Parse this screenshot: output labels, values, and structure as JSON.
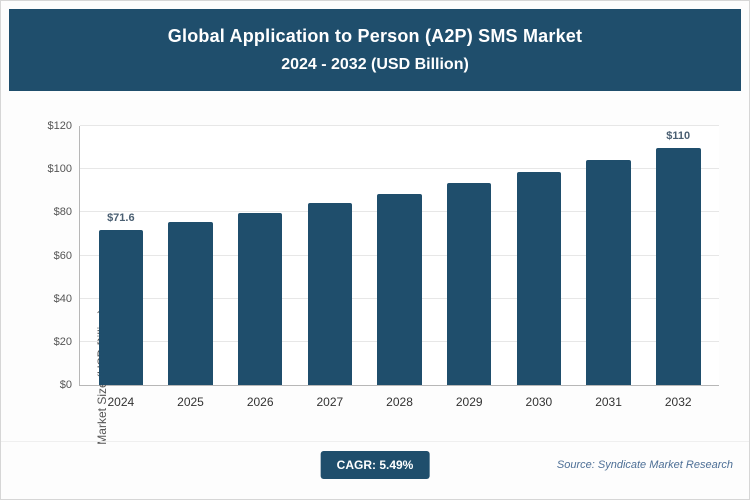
{
  "header": {
    "title_line1": "Global Application to Person (A2P) SMS Market",
    "title_line2": "2024 - 2032 (USD Billion)"
  },
  "chart_data": {
    "type": "bar",
    "title": "Global Application to Person (A2P) SMS Market 2024 - 2032 (USD Billion)",
    "categories": [
      "2024",
      "2025",
      "2026",
      "2027",
      "2028",
      "2029",
      "2030",
      "2031",
      "2032"
    ],
    "values": [
      71.6,
      75.5,
      79.7,
      84.1,
      88.7,
      93.5,
      98.7,
      104.1,
      109.8
    ],
    "point_labels": [
      "$71.6",
      "",
      "",
      "",
      "",
      "",
      "",
      "",
      "$110"
    ],
    "xlabel": "",
    "ylabel": "Market Size (USD Billion)",
    "ylim": [
      0,
      120
    ],
    "y_ticks": [
      0,
      20,
      40,
      60,
      80,
      100,
      120
    ],
    "y_tick_labels": [
      "$0",
      "$20",
      "$40",
      "$60",
      "$80",
      "$100",
      "$120"
    ],
    "grid": true,
    "legend": "none",
    "bar_color": "#1F4E6C"
  },
  "footer": {
    "cagr_label": "CAGR: 5.49%",
    "source": "Source: Syndicate Market Research"
  },
  "colors": {
    "header_bg": "#1F4E6C",
    "bar": "#1F4E6C",
    "badge_bg": "#1F4E6C",
    "gridline": "#e7e7e7"
  }
}
